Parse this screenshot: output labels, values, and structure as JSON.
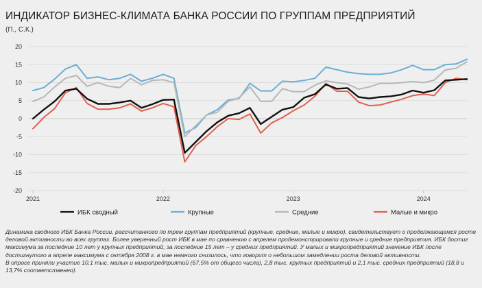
{
  "header": {
    "title": "ИНДИКАТОР БИЗНЕС-КЛИМАТА БАНКА РОССИИ ПО ГРУППАМ ПРЕДПРИЯТИЙ",
    "units": "(П., С.К.)"
  },
  "chart_data": {
    "type": "line",
    "ylim": [
      -20,
      20
    ],
    "yticks": [
      -20,
      -15,
      -10,
      -5,
      0,
      5,
      10,
      15,
      20
    ],
    "xtick_labels": [
      "2021",
      "2022",
      "2023",
      "2024"
    ],
    "xtick_index": [
      0,
      12,
      24,
      36
    ],
    "grid": "horizontal",
    "colors": {
      "total": "#111111",
      "large": "#6aaed6",
      "medium": "#b7b7b7",
      "small": "#e0604c"
    },
    "series": [
      {
        "key": "total",
        "name": "ИБК сводный",
        "values": [
          0,
          2.5,
          4.8,
          7.8,
          8.3,
          5.5,
          4.1,
          4.1,
          4.5,
          5,
          3,
          4,
          5.2,
          5.3,
          -9.5,
          -6.5,
          -3.5,
          -1,
          0.8,
          1.5,
          3,
          -1.5,
          0.5,
          2.5,
          3.2,
          5.8,
          6.8,
          9.5,
          8.3,
          8.5,
          6,
          5.6,
          6,
          6.2,
          6.7,
          7.8,
          7.2,
          7.9,
          10.6,
          10.8,
          11
        ]
      },
      {
        "key": "large",
        "name": "Крупные",
        "values": [
          7.8,
          8.6,
          11,
          13.8,
          15,
          11.2,
          11.6,
          10.8,
          11.2,
          12.3,
          10.4,
          11.2,
          12.3,
          11.2,
          -4,
          -2.5,
          1,
          2.5,
          5.2,
          5.6,
          9.8,
          7.7,
          7.7,
          10.4,
          10.2,
          10.6,
          11.2,
          14.3,
          13.6,
          12.9,
          12.5,
          12.3,
          12.3,
          12.7,
          13.6,
          14.8,
          13.6,
          13.6,
          15,
          15.2,
          16.5
        ]
      },
      {
        "key": "medium",
        "name": "Средние",
        "values": [
          4.8,
          6,
          8.8,
          11.2,
          12,
          9,
          10,
          9,
          8.6,
          11.2,
          9.4,
          10.6,
          10.8,
          10,
          -5,
          -2,
          1,
          1.8,
          4.8,
          5.8,
          8.8,
          4.8,
          4.8,
          8.3,
          7.5,
          7.5,
          9.3,
          10.5,
          10,
          9.6,
          8.2,
          8.8,
          9.8,
          9.8,
          10,
          10.3,
          10,
          10.7,
          13.5,
          14,
          15.8
        ]
      },
      {
        "key": "small",
        "name": "Малые и микро",
        "values": [
          -2.8,
          0.3,
          2.8,
          7.2,
          8.6,
          4.2,
          2.6,
          2.6,
          3,
          4.1,
          2.1,
          3,
          4.2,
          3.3,
          -12,
          -7.5,
          -5,
          -2.2,
          0,
          -0.2,
          1.3,
          -4,
          -1.2,
          0.3,
          2.2,
          3.8,
          6.2,
          9.8,
          7.6,
          7.6,
          4.6,
          3.6,
          3.8,
          4.6,
          5.4,
          6.4,
          6.8,
          6.4,
          10,
          11.2,
          10.8
        ]
      }
    ]
  },
  "legend": [
    {
      "key": "total",
      "label": "ИБК сводный"
    },
    {
      "key": "large",
      "label": "Крупные"
    },
    {
      "key": "medium",
      "label": "Средние"
    },
    {
      "key": "small",
      "label": "Малые и микро"
    }
  ],
  "note": {
    "paragraph1": "Динамика сводного ИБК Банка России, рассчитанного по трем группам предприятий (крупные, средние, малые и микро), свидетельствует о продолжающемся росте деловой активности во всех группах. Более уверенный рост ИБК в мае по сравнению с апрелем продемонстрировали крупные и средние предприятия. ИБК достиг максимума за последние 10 лет у крупных предприятий, за последние 15 лет – у средних предприятий. У малых и микропредприятий значение ИБК после достигнутого в апреле максимума с октября 2008 г. в мае немного снизилось, что говорит о небольшом замедлении роста деловой активности.",
    "paragraph2": "В опросе приняли участие 10,1 тыс. малых и микропредприятий (67,5% от общего числа), 2,8 тыс. крупных предприятий и 2,1 тыс. средних предприятий (18,8 и 13,7% соответственно)."
  }
}
